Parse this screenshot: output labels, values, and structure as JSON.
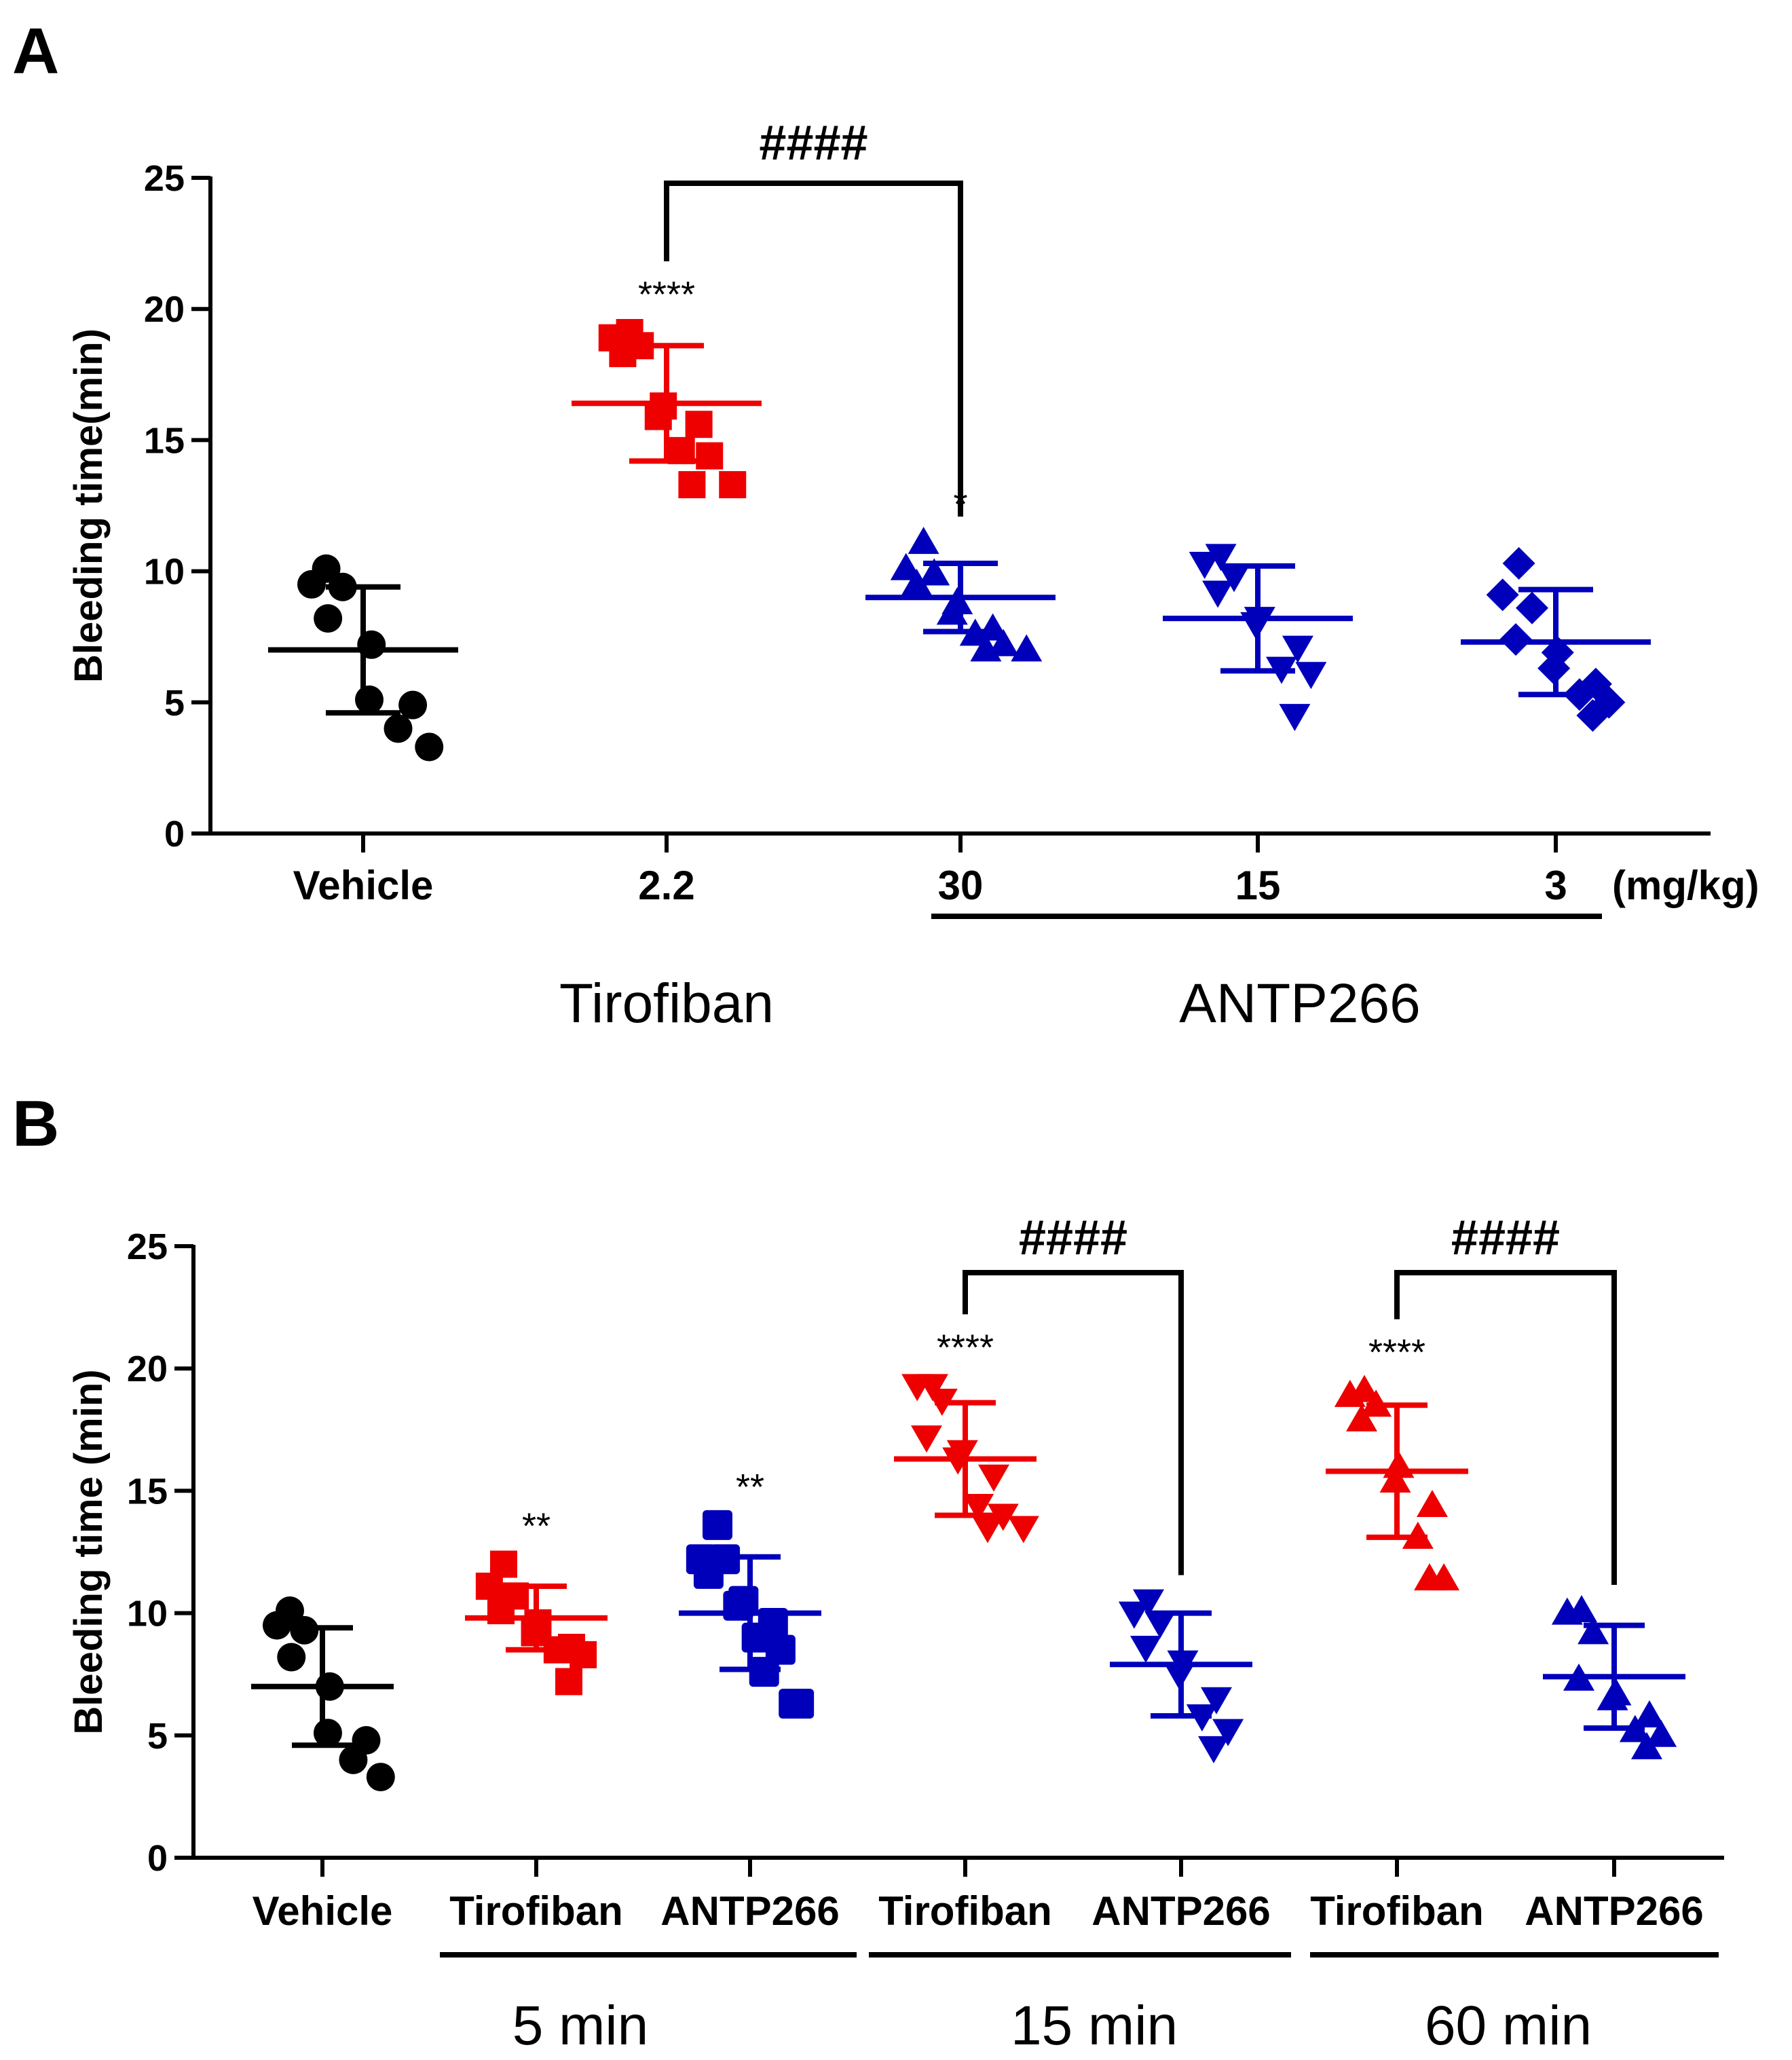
{
  "colors": {
    "black": "#000000",
    "red": "#ee0000",
    "blue": "#0000bb"
  },
  "chart_data": [
    {
      "panel": "A",
      "type": "scatter",
      "ylabel": "Bleeding time(min)",
      "ylim": [
        0,
        25
      ],
      "yticks": [
        0,
        5,
        10,
        15,
        20,
        25
      ],
      "unit_label": "(mg/kg)",
      "categories": [
        {
          "label": "Vehicle",
          "color": "black",
          "marker": "circle",
          "mean": 7.0,
          "sd_low": 4.6,
          "sd_high": 9.4,
          "points": [
            10.1,
            9.5,
            9.4,
            8.2,
            7.2,
            5.1,
            4.9,
            4.0,
            3.3
          ],
          "annotation": ""
        },
        {
          "label": "2.2",
          "color": "red",
          "marker": "square",
          "mean": 16.4,
          "sd_low": 14.2,
          "sd_high": 18.6,
          "points": [
            19.1,
            18.9,
            18.6,
            18.3,
            16.3,
            15.9,
            15.6,
            14.6,
            14.4,
            13.3,
            13.3
          ],
          "annotation": "****"
        },
        {
          "label": "30",
          "color": "blue",
          "marker": "triangle-up",
          "mean": 9.0,
          "sd_low": 7.7,
          "sd_high": 10.3,
          "points": [
            11.1,
            10.1,
            9.9,
            9.5,
            8.8,
            8.4,
            7.8,
            7.6,
            7.2,
            7.0,
            7.0
          ],
          "annotation": "*"
        },
        {
          "label": "15",
          "color": "blue",
          "marker": "triangle-down",
          "mean": 8.2,
          "sd_low": 6.2,
          "sd_high": 10.2,
          "points": [
            10.6,
            10.3,
            9.8,
            9.2,
            8.2,
            8.0,
            7.1,
            6.3,
            6.1,
            4.5
          ],
          "annotation": ""
        },
        {
          "label": "3",
          "color": "blue",
          "marker": "diamond",
          "mean": 7.3,
          "sd_low": 5.3,
          "sd_high": 9.3,
          "points": [
            10.3,
            9.1,
            8.6,
            7.4,
            6.9,
            6.3,
            5.7,
            5.3,
            5.0,
            4.5
          ],
          "annotation": ""
        }
      ],
      "groups": [
        {
          "label": "Tirofiban"
        },
        {
          "label": "ANTP266"
        }
      ],
      "comparisons": [
        {
          "from": 1,
          "to": 2,
          "label": "####"
        }
      ]
    },
    {
      "panel": "B",
      "type": "scatter",
      "ylabel": "Bleeding time (min)",
      "ylim": [
        0,
        25
      ],
      "yticks": [
        0,
        5,
        10,
        15,
        20,
        25
      ],
      "categories": [
        {
          "label": "Vehicle",
          "color": "black",
          "marker": "circle",
          "mean": 7.0,
          "sd_low": 4.6,
          "sd_high": 9.4,
          "points": [
            10.1,
            9.5,
            9.3,
            8.2,
            7.0,
            5.1,
            4.8,
            4.0,
            3.3
          ],
          "annotation": ""
        },
        {
          "label": "Tirofiban",
          "color": "red",
          "marker": "square",
          "mean": 9.8,
          "sd_low": 8.5,
          "sd_high": 11.1,
          "points": [
            12.0,
            11.1,
            10.7,
            10.1,
            9.6,
            9.2,
            8.6,
            8.5,
            8.3,
            7.2
          ],
          "annotation": "**"
        },
        {
          "label": "ANTP266",
          "color": "blue",
          "marker": "square-lg",
          "mean": 10.0,
          "sd_low": 7.7,
          "sd_high": 12.3,
          "points": [
            13.6,
            12.2,
            12.2,
            11.6,
            10.5,
            10.3,
            9.6,
            9.0,
            8.5,
            7.6,
            6.3,
            6.3
          ],
          "annotation": "**"
        },
        {
          "label": "Tirofiban",
          "color": "red",
          "marker": "triangle-down",
          "mean": 16.3,
          "sd_low": 14.0,
          "sd_high": 18.6,
          "points": [
            19.3,
            19.3,
            18.7,
            17.2,
            16.6,
            16.3,
            15.6,
            14.4,
            14.0,
            13.5,
            13.5
          ],
          "annotation": "****"
        },
        {
          "label": "ANTP266",
          "color": "blue",
          "marker": "triangle-down",
          "mean": 7.9,
          "sd_low": 5.8,
          "sd_high": 10.0,
          "points": [
            10.5,
            10.0,
            9.6,
            8.6,
            8.0,
            7.5,
            6.5,
            5.8,
            5.2,
            4.5
          ],
          "annotation": ""
        },
        {
          "label": "Tirofiban",
          "color": "red",
          "marker": "triangle-up",
          "mean": 15.8,
          "sd_low": 13.1,
          "sd_high": 18.5,
          "points": [
            19.1,
            18.9,
            18.5,
            17.9,
            16.0,
            15.4,
            14.4,
            13.1,
            11.4,
            11.4
          ],
          "annotation": "****"
        },
        {
          "label": "ANTP266",
          "color": "blue",
          "marker": "triangle-up",
          "mean": 7.4,
          "sd_low": 5.3,
          "sd_high": 9.5,
          "points": [
            10.1,
            10.0,
            9.2,
            7.3,
            6.7,
            6.5,
            5.8,
            5.2,
            5.0,
            4.5
          ],
          "annotation": ""
        }
      ],
      "groups": [
        {
          "label": "5 min"
        },
        {
          "label": "15 min"
        },
        {
          "label": "60 min"
        }
      ],
      "comparisons": [
        {
          "from": 3,
          "to": 4,
          "label": "####"
        },
        {
          "from": 5,
          "to": 6,
          "label": "####"
        }
      ]
    }
  ]
}
